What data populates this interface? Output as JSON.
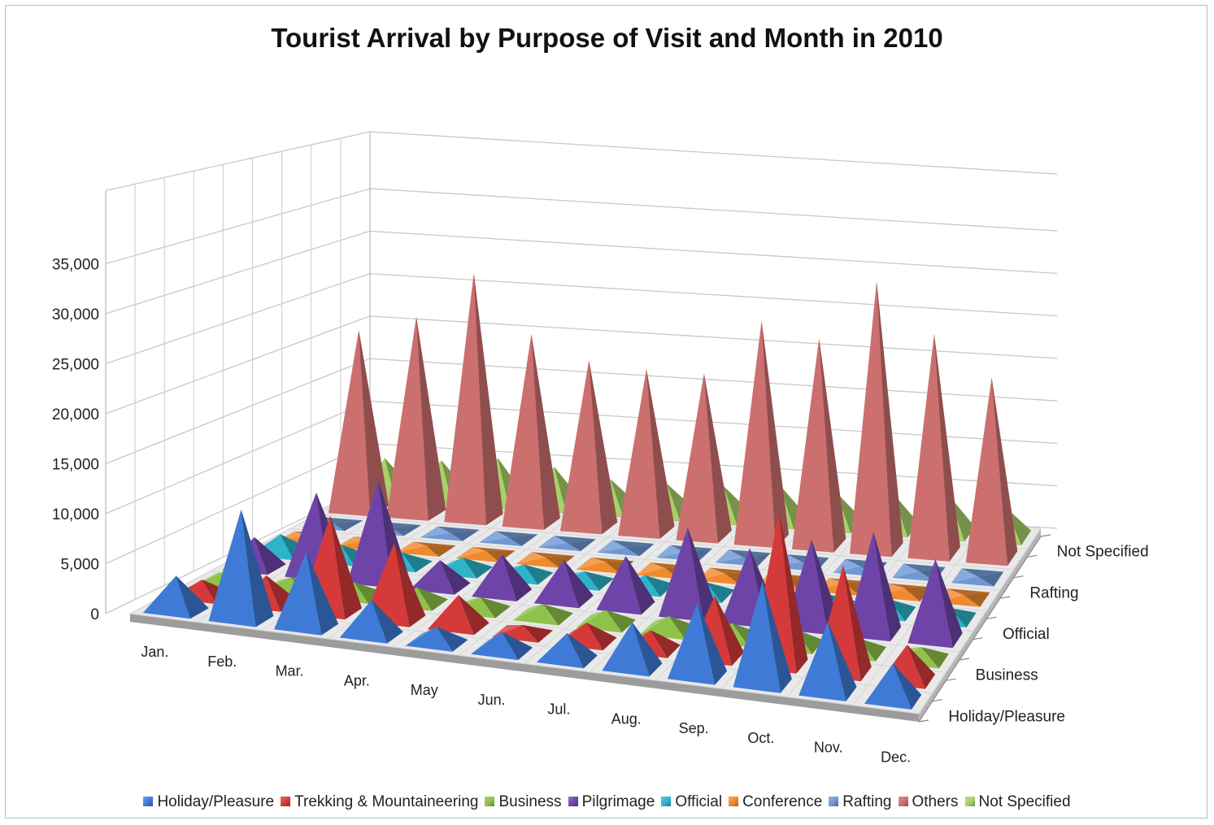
{
  "chart_data": {
    "type": "bar",
    "shape": "3d-pyramid",
    "title": "Tourist Arrival by Purpose of Visit and Month in 2010",
    "categories": [
      "Jan.",
      "Feb.",
      "Mar.",
      "Apr.",
      "May",
      "Jun.",
      "Jul.",
      "Aug.",
      "Sep.",
      "Oct.",
      "Nov.",
      "Dec."
    ],
    "depth_labels": [
      "Holiday/Pleasure",
      "Business",
      "Official",
      "Rafting",
      "Not Specified"
    ],
    "y_ticks": [
      "0",
      "5,000",
      "10,000",
      "15,000",
      "20,000",
      "25,000",
      "30,000",
      "35,000"
    ],
    "ylim": [
      0,
      35000
    ],
    "grid": true,
    "legend_position": "bottom",
    "series": [
      {
        "name": "Holiday/Pleasure",
        "color": "#3f7ad6",
        "values": [
          3500,
          11000,
          7500,
          3500,
          1600,
          1900,
          2600,
          4500,
          7300,
          10300,
          7000,
          3600
        ]
      },
      {
        "name": "Trekking & Mountaineering",
        "color": "#d43a3a",
        "values": [
          1700,
          2900,
          9800,
          7800,
          3200,
          900,
          1900,
          1900,
          6200,
          15600,
          10900,
          3500
        ]
      },
      {
        "name": "Business",
        "color": "#8fc24a",
        "values": [
          1200,
          1200,
          1400,
          1600,
          1300,
          1300,
          1400,
          1500,
          1500,
          1600,
          1400,
          1200
        ]
      },
      {
        "name": "Pilgrimage",
        "color": "#6f44a8",
        "values": [
          3200,
          8600,
          10600,
          2800,
          4100,
          4200,
          5300,
          9000,
          7500,
          9100,
          10600,
          8400
        ]
      },
      {
        "name": "Official",
        "color": "#2eb3c8",
        "values": [
          2000,
          1500,
          1300,
          1400,
          1300,
          1200,
          1400,
          1300,
          1200,
          1300,
          1400,
          1100
        ]
      },
      {
        "name": "Conference",
        "color": "#f08a2e",
        "values": [
          300,
          500,
          400,
          400,
          300,
          400,
          300,
          300,
          400,
          500,
          500,
          300
        ]
      },
      {
        "name": "Rafting",
        "color": "#6f98d4",
        "values": [
          100,
          100,
          100,
          100,
          50,
          50,
          50,
          50,
          100,
          150,
          150,
          100
        ]
      },
      {
        "name": "Others",
        "color": "#cc6f6f",
        "values": [
          20500,
          22500,
          28000,
          21500,
          19000,
          18500,
          18500,
          25000,
          23500,
          30500,
          25000,
          20500
        ]
      },
      {
        "name": "Not Specified",
        "color": "#a9d06a",
        "values": [
          4300,
          4500,
          5200,
          4600,
          3600,
          3500,
          3700,
          4200,
          3800,
          4200,
          4300,
          3400
        ]
      }
    ]
  }
}
